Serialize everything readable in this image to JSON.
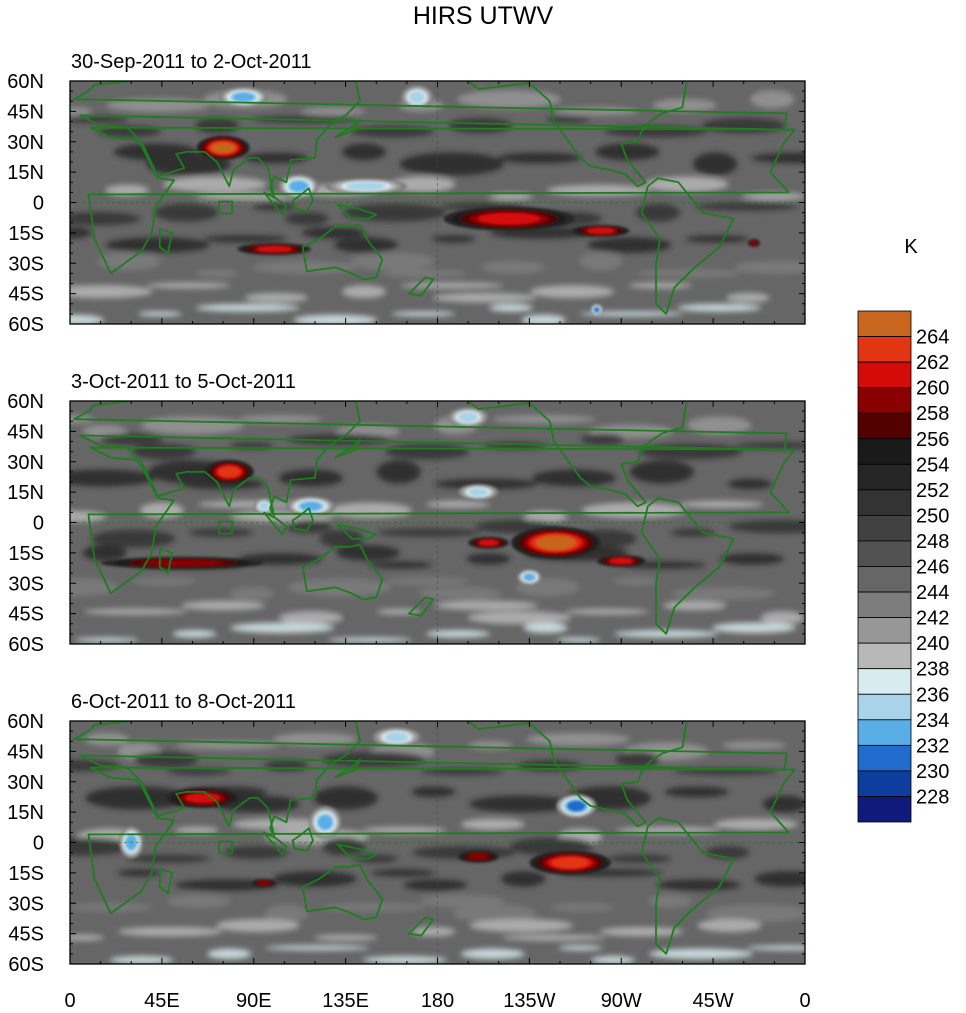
{
  "chart_data": {
    "type": "heatmap",
    "title": "HIRS UTWV",
    "units_label": "K",
    "x_ticks": [
      "0",
      "45E",
      "90E",
      "135E",
      "180",
      "135W",
      "90W",
      "45W",
      "0"
    ],
    "y_ticks": [
      "60N",
      "45N",
      "30N",
      "15N",
      "0",
      "15S",
      "30S",
      "45S",
      "60S"
    ],
    "xlim_degrees_east": [
      0,
      360
    ],
    "ylim_degrees_north": [
      -60,
      60
    ],
    "colorbar_levels": [
      264,
      262,
      260,
      258,
      256,
      254,
      252,
      250,
      248,
      246,
      244,
      242,
      240,
      238,
      236,
      234,
      232,
      230,
      228
    ],
    "colorbar_colors": [
      "#c8651e",
      "#e23512",
      "#d40b08",
      "#8a0000",
      "#520000",
      "#1a1a1a",
      "#262626",
      "#333333",
      "#414141",
      "#525252",
      "#666666",
      "#7d7d7d",
      "#979797",
      "#b8b8b8",
      "#d8ecf0",
      "#a8d3e8",
      "#5aaee6",
      "#1f6ccc",
      "#0d3e9e",
      "#101a7a"
    ],
    "panels": [
      {
        "label": "30-Sep-2011 to 2-Oct-2011",
        "features": [
          {
            "lon": 75,
            "lat": 27,
            "rx": 13,
            "ry": 6,
            "value": 264
          },
          {
            "lon": 215,
            "lat": -8,
            "rx": 32,
            "ry": 6,
            "value": 260
          },
          {
            "lon": 260,
            "lat": -14,
            "rx": 14,
            "ry": 3,
            "value": 260
          },
          {
            "lon": 100,
            "lat": -23,
            "rx": 18,
            "ry": 3,
            "value": 260
          },
          {
            "lon": 335,
            "lat": -20,
            "rx": 3,
            "ry": 2,
            "value": 258
          },
          {
            "lon": 112,
            "lat": 8,
            "rx": 10,
            "ry": 6,
            "value": 232
          },
          {
            "lon": 145,
            "lat": 8,
            "rx": 20,
            "ry": 4,
            "value": 234
          },
          {
            "lon": 85,
            "lat": 52,
            "rx": 12,
            "ry": 5,
            "value": 232
          },
          {
            "lon": 170,
            "lat": 52,
            "rx": 8,
            "ry": 6,
            "value": 234
          },
          {
            "lon": 258,
            "lat": -53,
            "rx": 3,
            "ry": 3,
            "value": 230
          }
        ]
      },
      {
        "label": "3-Oct-2011 to 5-Oct-2011",
        "features": [
          {
            "lon": 78,
            "lat": 25,
            "rx": 12,
            "ry": 6,
            "value": 262
          },
          {
            "lon": 238,
            "lat": -10,
            "rx": 22,
            "ry": 8,
            "value": 264
          },
          {
            "lon": 205,
            "lat": -10,
            "rx": 10,
            "ry": 3,
            "value": 260
          },
          {
            "lon": 270,
            "lat": -19,
            "rx": 12,
            "ry": 3,
            "value": 260
          },
          {
            "lon": 55,
            "lat": -20,
            "rx": 40,
            "ry": 3,
            "value": 258
          },
          {
            "lon": 118,
            "lat": 8,
            "rx": 12,
            "ry": 5,
            "value": 232
          },
          {
            "lon": 95,
            "lat": 8,
            "rx": 5,
            "ry": 4,
            "value": 234
          },
          {
            "lon": 195,
            "lat": 52,
            "rx": 10,
            "ry": 5,
            "value": 234
          },
          {
            "lon": 225,
            "lat": -27,
            "rx": 6,
            "ry": 4,
            "value": 232
          },
          {
            "lon": 200,
            "lat": 15,
            "rx": 10,
            "ry": 4,
            "value": 234
          }
        ]
      },
      {
        "label": "6-Oct-2011 to 8-Oct-2011",
        "features": [
          {
            "lon": 65,
            "lat": 22,
            "rx": 18,
            "ry": 5,
            "value": 260
          },
          {
            "lon": 245,
            "lat": -10,
            "rx": 20,
            "ry": 6,
            "value": 262
          },
          {
            "lon": 200,
            "lat": -7,
            "rx": 10,
            "ry": 3,
            "value": 258
          },
          {
            "lon": 30,
            "lat": 0,
            "rx": 6,
            "ry": 8,
            "value": 232
          },
          {
            "lon": 125,
            "lat": 10,
            "rx": 8,
            "ry": 8,
            "value": 232
          },
          {
            "lon": 248,
            "lat": 18,
            "rx": 10,
            "ry": 6,
            "value": 230
          },
          {
            "lon": 160,
            "lat": 52,
            "rx": 12,
            "ry": 5,
            "value": 234
          },
          {
            "lon": 95,
            "lat": -20,
            "rx": 6,
            "ry": 2,
            "value": 258
          }
        ]
      }
    ]
  }
}
